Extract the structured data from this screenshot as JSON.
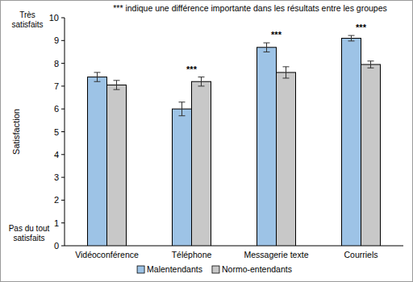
{
  "chart_data": {
    "type": "bar",
    "title": "*** indique une différence importante dans les résultats entre les groupes",
    "ylabel": "Satisfaction",
    "ylabel_top": "Très satisfaits",
    "ylabel_bottom": "Pas du tout satisfaits",
    "categories": [
      "Vidéoconférence",
      "Téléphone",
      "Messagerie texte",
      "Courriels"
    ],
    "series": [
      {
        "name": "Malentendants",
        "color": "#9dc3e6",
        "values": [
          7.4,
          6.0,
          8.7,
          9.1
        ],
        "errors": [
          0.2,
          0.3,
          0.2,
          0.12
        ]
      },
      {
        "name": "Normo-entendants",
        "color": "#c8c8c8",
        "values": [
          7.05,
          7.2,
          7.6,
          7.95
        ],
        "errors": [
          0.2,
          0.2,
          0.25,
          0.15
        ]
      }
    ],
    "annotations": [
      {
        "category_index": 1,
        "text": "***"
      },
      {
        "category_index": 2,
        "text": "***"
      },
      {
        "category_index": 3,
        "text": "***"
      }
    ],
    "ylim": [
      0,
      10
    ],
    "yticks": [
      0,
      1,
      2,
      3,
      4,
      5,
      6,
      7,
      8,
      9,
      10
    ],
    "grid": false,
    "legend": "bottom"
  }
}
